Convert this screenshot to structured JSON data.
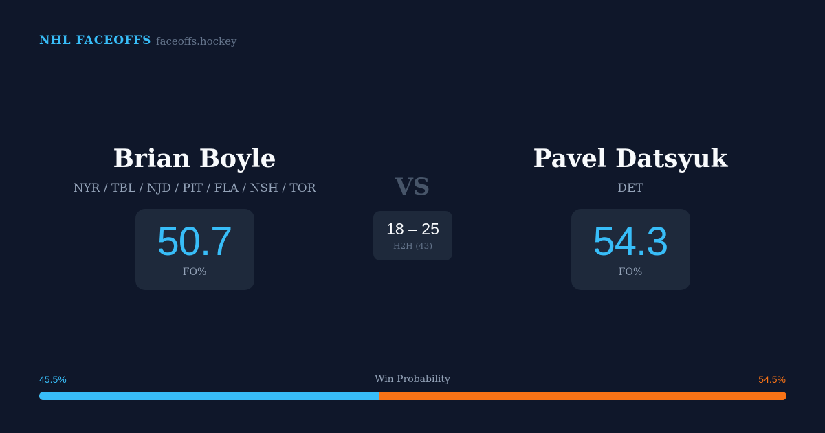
{
  "header": {
    "brand": "NHL FACEOFFS",
    "domain": "faceoffs.hockey"
  },
  "player1": {
    "name": "Brian Boyle",
    "teams": "NYR / TBL / NJD / PIT / FLA / NSH / TOR",
    "fo_pct": "50.7",
    "fo_label": "FO%"
  },
  "player2": {
    "name": "Pavel Datsyuk",
    "teams": "DET",
    "fo_pct": "54.3",
    "fo_label": "FO%"
  },
  "versus": {
    "label": "VS",
    "score": "18 – 25",
    "h2h_label": "H2H (43)"
  },
  "win_probability": {
    "label": "Win Probability",
    "left": "45.5%",
    "right": "54.5%",
    "left_value": 45.5,
    "right_value": 54.5,
    "colors": {
      "left": "#38bdf8",
      "right": "#f97316"
    }
  }
}
